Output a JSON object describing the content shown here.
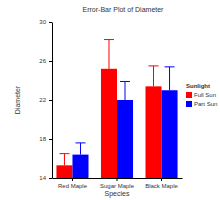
{
  "chart_data": {
    "type": "bar",
    "title": "Error-Bar Plot of Diameter",
    "x_label": "Species",
    "y_label": "Diameter",
    "categories": [
      "Red Maple",
      "Sugar Maple",
      "Black Maple"
    ],
    "series": [
      {
        "name": "Full Sun",
        "color": "#ff0000",
        "values": [
          15.3,
          25.2,
          23.4
        ],
        "errors": [
          1.2,
          3.0,
          2.1
        ]
      },
      {
        "name": "Part Sun",
        "color": "#0000ff",
        "values": [
          16.4,
          22.0,
          23.0
        ],
        "errors": [
          1.2,
          1.9,
          2.4
        ]
      }
    ],
    "ylim": [
      14,
      30
    ],
    "yticks": [
      14,
      18,
      22,
      26,
      30
    ],
    "legend": "right",
    "legend_title": "Sunlight",
    "grid": false
  }
}
